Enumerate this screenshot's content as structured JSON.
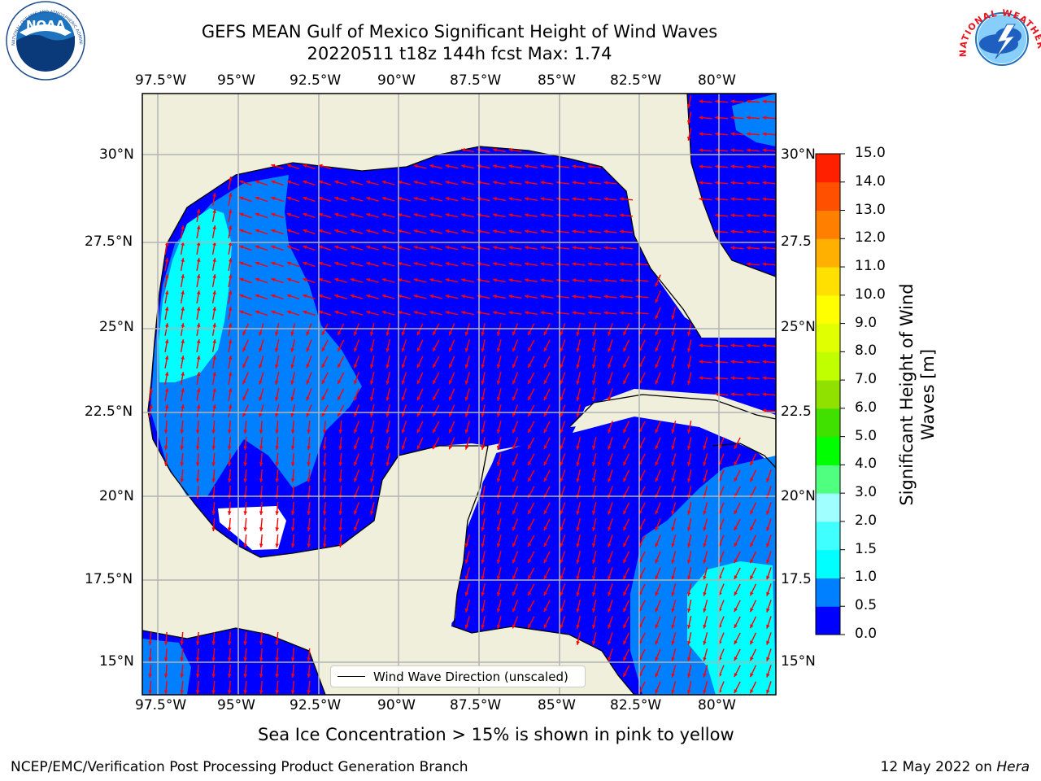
{
  "header": {
    "title_line1": "GEFS MEAN Gulf of Mexico Significant Height of Wind Waves",
    "title_line2": "20220511 t18z 144h fcst   Max: 1.74"
  },
  "logos": {
    "left": "NOAA",
    "left_ring_text": "NATIONAL OCEANIC AND ATMOSPHERIC ADMINISTRATION · U.S. DEPARTMENT OF COMMERCE",
    "right_ring_text": "NATIONAL WEATHER SERVICE"
  },
  "map": {
    "lon_ticks": [
      "97.5°W",
      "95°W",
      "92.5°W",
      "90°W",
      "87.5°W",
      "85°W",
      "82.5°W",
      "80°W"
    ],
    "lat_ticks": [
      "30°N",
      "27.5°N",
      "25°N",
      "22.5°N",
      "20°N",
      "17.5°N",
      "15°N"
    ],
    "lat_ticks_right": [
      "30°N",
      "27.5",
      "25°N",
      "22.5",
      "20°N",
      "17.5",
      "15°N"
    ],
    "legend_label": "Wind Wave Direction (unscaled)"
  },
  "colorbar": {
    "title": "Significant Height of Wind Waves [m]",
    "levels": [
      "0.0",
      "0.5",
      "1.0",
      "1.5",
      "2.0",
      "3.0",
      "4.0",
      "5.0",
      "6.0",
      "7.0",
      "8.0",
      "9.0",
      "10.0",
      "11.0",
      "12.0",
      "13.0",
      "14.0",
      "15.0"
    ],
    "colors": [
      "#0000ff",
      "#0080ff",
      "#00ffff",
      "#40ffff",
      "#a0ffff",
      "#50ff80",
      "#00ff00",
      "#40e000",
      "#90e000",
      "#c0ff00",
      "#e0ff00",
      "#ffff00",
      "#ffe000",
      "#ffb000",
      "#ff8000",
      "#ff5000",
      "#ff2000"
    ]
  },
  "notes": {
    "sea_ice": "Sea Ice Concentration > 15% is shown in pink to yellow"
  },
  "footer": {
    "left": "NCEP/EMC/Verification Post Processing Product Generation Branch",
    "date": "12 May 2022 on ",
    "host": "Hera"
  }
}
